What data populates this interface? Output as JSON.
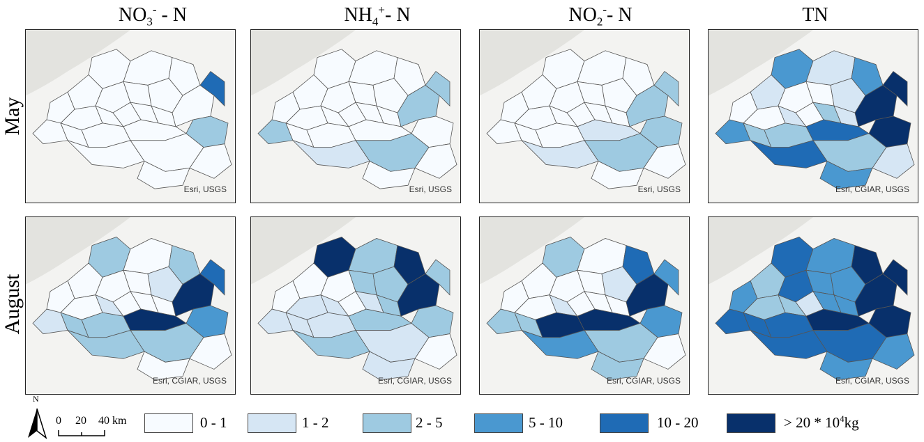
{
  "columns": [
    {
      "base": "NO",
      "sub": "3",
      "sup": "-",
      "suffix": " - N"
    },
    {
      "base": "NH",
      "sub": "4",
      "sup": "+",
      "suffix": "- N"
    },
    {
      "base": "NO",
      "sub": "2",
      "sup": "-",
      "suffix": "- N"
    },
    {
      "base": "TN",
      "sub": "",
      "sup": "",
      "suffix": ""
    }
  ],
  "rows": [
    "May",
    "August"
  ],
  "credits": {
    "may": [
      "Esri, USGS",
      "Esri, USGS",
      "Esri, USGS",
      "Esri, CGIAR, USGS"
    ],
    "august": [
      "Esri, CGIAR, USGS",
      "Esri, CGIAR, USGS",
      "Esri, CGIAR, USGS",
      "Esri, CGIAR, USGS"
    ]
  },
  "north_arrow": "N",
  "scale_bar": {
    "ticks": [
      "0",
      "20",
      "40 km"
    ]
  },
  "legend": {
    "classes": [
      {
        "label": "0 - 1",
        "color": "#f7fbff"
      },
      {
        "label": "1 - 2",
        "color": "#d6e6f4"
      },
      {
        "label": "2 - 5",
        "color": "#9ecae1"
      },
      {
        "label": "5 - 10",
        "color": "#4a98d0"
      },
      {
        "label": "10 - 20",
        "color": "#1f6bb5"
      },
      {
        "label": "> 20 * 10",
        "color": "#08306b"
      }
    ],
    "unit_sup": "4",
    "unit": "kg"
  },
  "panel_classes": {
    "may": [
      [
        0,
        0,
        0,
        0,
        0,
        0,
        0,
        0,
        0,
        0,
        0,
        0,
        0,
        0,
        0,
        0,
        0,
        0,
        4,
        2,
        0,
        0,
        0,
        0
      ],
      [
        0,
        0,
        0,
        0,
        0,
        0,
        0,
        0,
        0,
        0,
        0,
        0,
        0,
        2,
        0,
        0,
        0,
        2,
        2,
        0,
        2,
        1,
        0,
        0
      ],
      [
        0,
        0,
        0,
        0,
        0,
        0,
        0,
        0,
        0,
        0,
        0,
        0,
        0,
        0,
        0,
        0,
        1,
        2,
        2,
        2,
        2,
        1,
        0,
        0
      ],
      [
        3,
        1,
        3,
        1,
        0,
        0,
        1,
        0,
        0,
        1,
        0,
        2,
        1,
        3,
        2,
        2,
        4,
        5,
        5,
        5,
        2,
        4,
        1,
        3
      ]
    ],
    "august": [
      [
        2,
        0,
        2,
        0,
        0,
        0,
        1,
        0,
        0,
        1,
        0,
        0,
        0,
        1,
        2,
        2,
        5,
        5,
        4,
        3,
        2,
        2,
        0,
        0
      ],
      [
        5,
        2,
        5,
        0,
        0,
        2,
        2,
        0,
        1,
        1,
        0,
        1,
        2,
        1,
        1,
        1,
        2,
        5,
        2,
        2,
        1,
        2,
        0,
        1
      ],
      [
        2,
        0,
        4,
        0,
        0,
        0,
        1,
        0,
        0,
        1,
        0,
        0,
        0,
        2,
        2,
        5,
        5,
        5,
        3,
        3,
        2,
        3,
        0,
        2
      ],
      [
        4,
        3,
        5,
        2,
        4,
        3,
        3,
        3,
        2,
        2,
        1,
        3,
        3,
        4,
        4,
        4,
        5,
        5,
        5,
        5,
        4,
        4,
        3,
        3
      ]
    ]
  }
}
